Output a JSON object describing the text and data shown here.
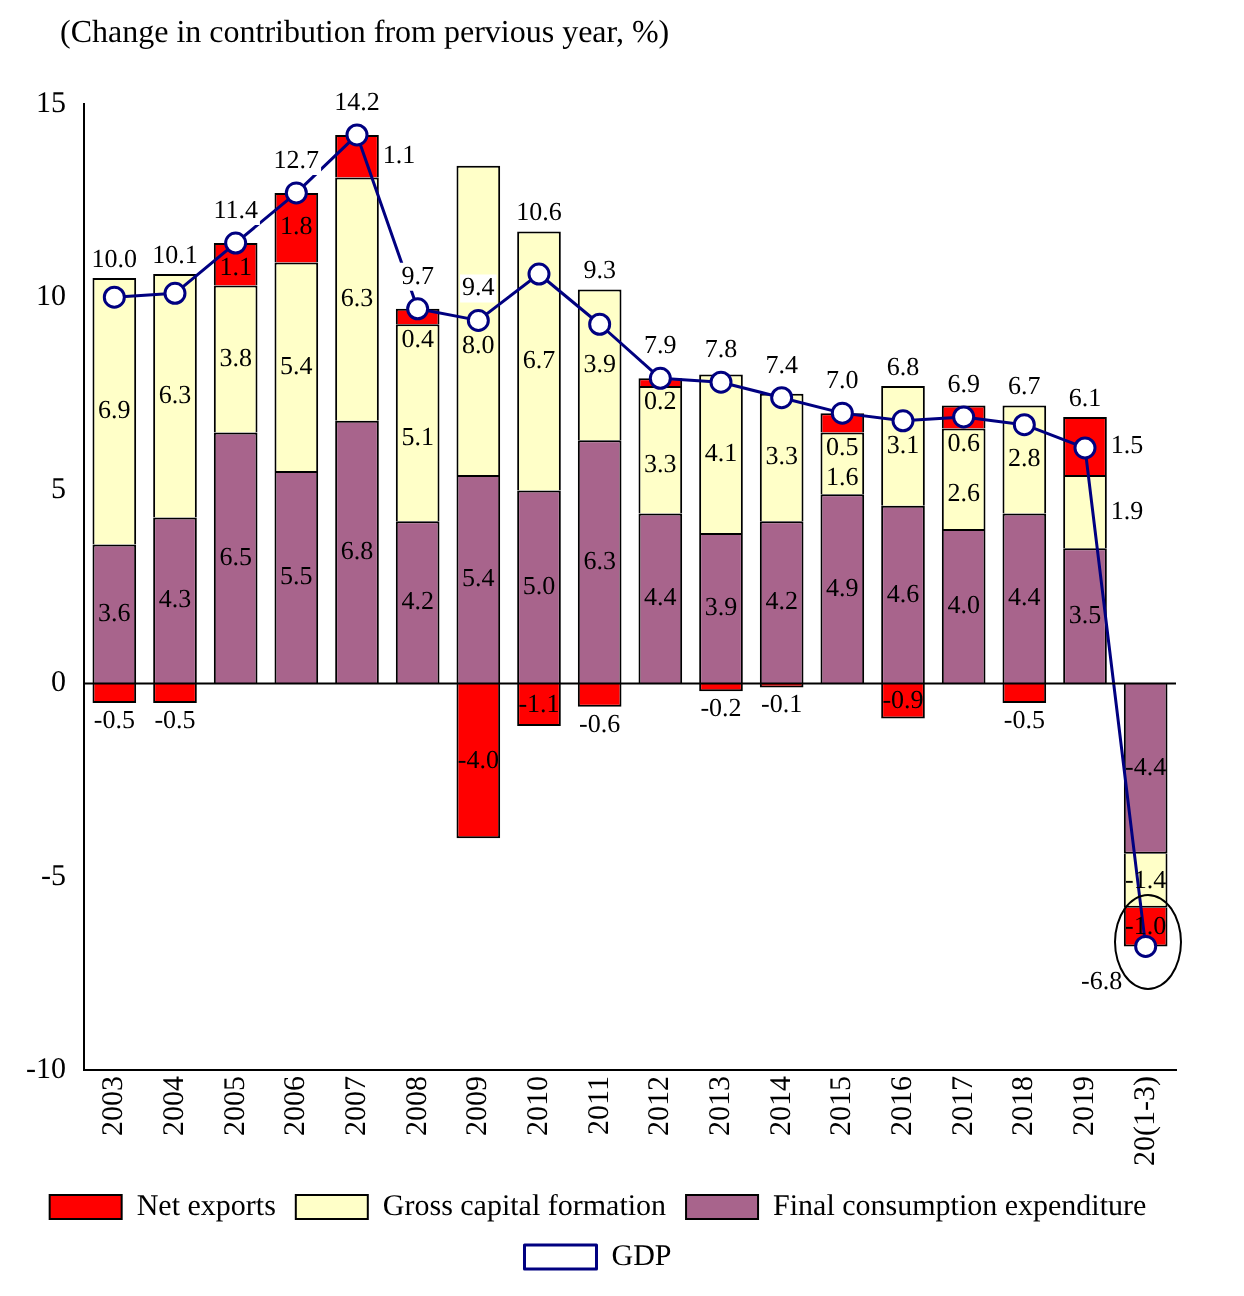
{
  "chart_data": {
    "type": "bar",
    "stacked": true,
    "ylabel": "(Change in contribution from pervious year, %)",
    "categories": [
      "2003",
      "2004",
      "2005",
      "2006",
      "2007",
      "2008",
      "2009",
      "2010",
      "2011",
      "2012",
      "2013",
      "2014",
      "2015",
      "2016",
      "2017",
      "2018",
      "2019",
      "20(1-3)"
    ],
    "series": [
      {
        "name": "Final consumption expenditure",
        "color": "#a8648c",
        "values": [
          3.6,
          4.3,
          6.5,
          5.5,
          6.8,
          4.2,
          5.4,
          5.0,
          6.3,
          4.4,
          3.9,
          4.2,
          4.9,
          4.6,
          4.0,
          4.4,
          3.5,
          -4.4
        ],
        "value_labels": [
          "3.6",
          "4.3",
          "6.5",
          "5.5",
          "6.8",
          "4.2",
          "5.4",
          "5.0",
          "6.3",
          "4.4",
          "3.9",
          "4.2",
          "4.9",
          "4.6",
          "4.0",
          "4.4",
          "3.5",
          "-4.4"
        ]
      },
      {
        "name": "Gross capital formation",
        "color": "#ffffc8",
        "values": [
          6.9,
          6.3,
          3.8,
          5.4,
          6.3,
          5.1,
          8.0,
          6.7,
          3.9,
          3.3,
          4.1,
          3.3,
          1.6,
          3.1,
          2.6,
          2.8,
          1.9,
          -1.4
        ],
        "value_labels": [
          "6.9",
          "6.3",
          "3.8",
          "5.4",
          "6.3",
          "5.1",
          "8.0",
          "6.7",
          "3.9",
          "3.3",
          "4.1",
          "3.3",
          "1.6",
          "3.1",
          "2.6",
          "2.8",
          "1.9",
          "-1.4"
        ]
      },
      {
        "name": "Net exports",
        "color": "#ff0000",
        "values": [
          -0.5,
          -0.5,
          1.1,
          1.8,
          1.1,
          0.4,
          -4.0,
          -1.1,
          -0.6,
          0.2,
          -0.2,
          -0.1,
          0.5,
          -0.9,
          0.6,
          -0.5,
          1.5,
          -1.0
        ],
        "value_labels": [
          "-0.5",
          "-0.5",
          "1.1",
          "1.8",
          "1.1",
          "0.4",
          "-4.0",
          "-1.1",
          "-0.6",
          "0.2",
          "-0.2",
          "-0.1",
          "0.5",
          "-0.9",
          "0.6",
          "-0.5",
          "1.5",
          "-1.0"
        ]
      },
      {
        "name": "GDP",
        "type": "line",
        "color": "#000080",
        "values": [
          10.0,
          10.1,
          11.4,
          12.7,
          14.2,
          9.7,
          9.4,
          10.6,
          9.3,
          7.9,
          7.8,
          7.4,
          7.0,
          6.8,
          6.9,
          6.7,
          6.1,
          -6.8
        ],
        "value_labels": [
          "10.0",
          "10.1",
          "11.4",
          "12.7",
          "14.2",
          "9.7",
          "9.4",
          "10.6",
          "9.3",
          "7.9",
          "7.8",
          "7.4",
          "7.0",
          "6.8",
          "6.9",
          "6.7",
          "6.1",
          "-6.8"
        ]
      }
    ],
    "ylim": [
      -10,
      15
    ],
    "yticks": [
      -10,
      -5,
      0,
      5,
      10,
      15
    ],
    "ref_lines": [
      {
        "axis": "y",
        "value": 0
      }
    ],
    "grid": false,
    "legend": "bottom",
    "marker": "circle"
  }
}
